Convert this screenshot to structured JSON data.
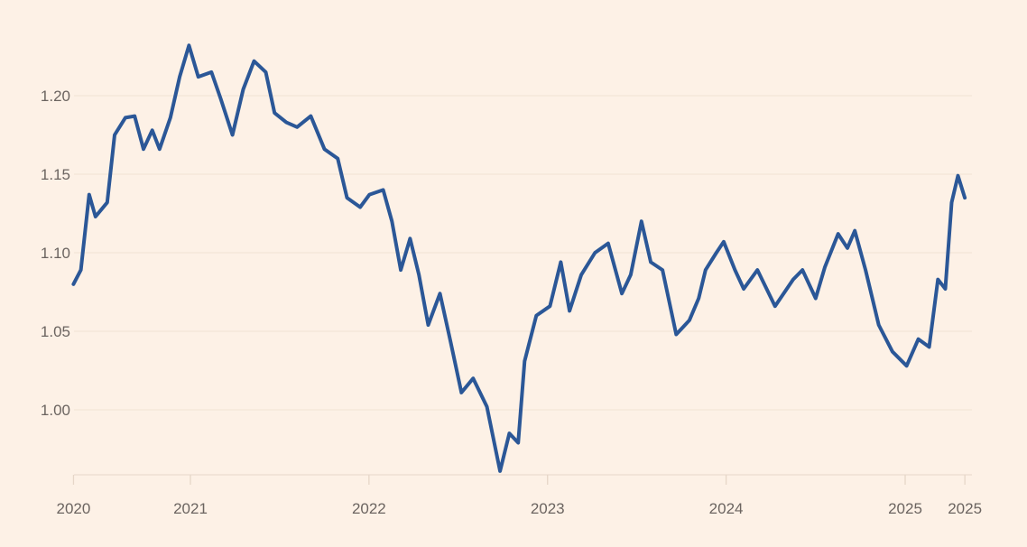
{
  "chart_data": {
    "type": "line",
    "title": "",
    "xlabel": "",
    "ylabel": "",
    "grid": true,
    "ylim": [
      0.958,
      1.24
    ],
    "yticks": [
      {
        "value": 1.0,
        "label": "1.00"
      },
      {
        "value": 1.05,
        "label": "1.05"
      },
      {
        "value": 1.1,
        "label": "1.10"
      },
      {
        "value": 1.15,
        "label": "1.15"
      },
      {
        "value": 1.2,
        "label": "1.20"
      }
    ],
    "xticks": [
      {
        "date": "2020-05-07",
        "label": "2020"
      },
      {
        "date": "2021-01-01",
        "label": "2021"
      },
      {
        "date": "2022-01-01",
        "label": "2022"
      },
      {
        "date": "2023-01-01",
        "label": "2023"
      },
      {
        "date": "2024-01-01",
        "label": "2024"
      },
      {
        "date": "2025-01-01",
        "label": "2025"
      },
      {
        "date": "2025-05-03",
        "label": "2025"
      }
    ],
    "colors": {
      "background": "#fdf1e6",
      "line": "#2b5797"
    },
    "series": [
      {
        "points": [
          [
            "2020-05-07",
            1.08
          ],
          [
            "2020-05-22",
            1.089
          ],
          [
            "2020-06-08",
            1.137
          ],
          [
            "2020-06-21",
            1.123
          ],
          [
            "2020-07-15",
            1.132
          ],
          [
            "2020-07-30",
            1.175
          ],
          [
            "2020-08-21",
            1.186
          ],
          [
            "2020-09-09",
            1.187
          ],
          [
            "2020-09-27",
            1.166
          ],
          [
            "2020-10-15",
            1.178
          ],
          [
            "2020-10-30",
            1.166
          ],
          [
            "2020-11-21",
            1.186
          ],
          [
            "2020-12-10",
            1.212
          ],
          [
            "2020-12-29",
            1.232
          ],
          [
            "2021-01-17",
            1.212
          ],
          [
            "2021-02-13",
            1.215
          ],
          [
            "2021-03-04",
            1.198
          ],
          [
            "2021-03-28",
            1.175
          ],
          [
            "2021-04-19",
            1.204
          ],
          [
            "2021-05-11",
            1.222
          ],
          [
            "2021-06-04",
            1.215
          ],
          [
            "2021-06-22",
            1.189
          ],
          [
            "2021-07-16",
            1.183
          ],
          [
            "2021-08-07",
            1.18
          ],
          [
            "2021-09-04",
            1.187
          ],
          [
            "2021-10-02",
            1.166
          ],
          [
            "2021-10-29",
            1.16
          ],
          [
            "2021-11-17",
            1.135
          ],
          [
            "2021-12-14",
            1.129
          ],
          [
            "2022-01-02",
            1.137
          ],
          [
            "2022-01-30",
            1.14
          ],
          [
            "2022-02-17",
            1.12
          ],
          [
            "2022-03-07",
            1.089
          ],
          [
            "2022-03-26",
            1.109
          ],
          [
            "2022-04-13",
            1.086
          ],
          [
            "2022-05-02",
            1.054
          ],
          [
            "2022-05-26",
            1.074
          ],
          [
            "2022-06-17",
            1.043
          ],
          [
            "2022-07-09",
            1.011
          ],
          [
            "2022-08-02",
            1.02
          ],
          [
            "2022-08-30",
            1.002
          ],
          [
            "2022-09-26",
            0.961
          ],
          [
            "2022-10-15",
            0.985
          ],
          [
            "2022-11-02",
            0.979
          ],
          [
            "2022-11-15",
            1.031
          ],
          [
            "2022-12-09",
            1.06
          ],
          [
            "2023-01-06",
            1.066
          ],
          [
            "2023-01-28",
            1.094
          ],
          [
            "2023-02-15",
            1.063
          ],
          [
            "2023-03-11",
            1.086
          ],
          [
            "2023-04-08",
            1.1
          ],
          [
            "2023-05-05",
            1.106
          ],
          [
            "2023-06-02",
            1.074
          ],
          [
            "2023-06-20",
            1.086
          ],
          [
            "2023-07-12",
            1.12
          ],
          [
            "2023-07-31",
            1.094
          ],
          [
            "2023-08-24",
            1.089
          ],
          [
            "2023-09-21",
            1.048
          ],
          [
            "2023-10-18",
            1.057
          ],
          [
            "2023-11-06",
            1.071
          ],
          [
            "2023-11-20",
            1.089
          ],
          [
            "2023-12-12",
            1.1
          ],
          [
            "2023-12-27",
            1.107
          ],
          [
            "2024-01-19",
            1.089
          ],
          [
            "2024-02-06",
            1.077
          ],
          [
            "2024-03-05",
            1.089
          ],
          [
            "2024-04-10",
            1.066
          ],
          [
            "2024-05-17",
            1.083
          ],
          [
            "2024-06-05",
            1.089
          ],
          [
            "2024-07-02",
            1.071
          ],
          [
            "2024-07-21",
            1.091
          ],
          [
            "2024-08-17",
            1.112
          ],
          [
            "2024-09-05",
            1.103
          ],
          [
            "2024-09-20",
            1.114
          ],
          [
            "2024-10-12",
            1.089
          ],
          [
            "2024-11-08",
            1.054
          ],
          [
            "2024-12-06",
            1.037
          ],
          [
            "2025-01-04",
            1.028
          ],
          [
            "2025-01-28",
            1.045
          ],
          [
            "2025-02-19",
            1.04
          ],
          [
            "2025-03-09",
            1.083
          ],
          [
            "2025-03-24",
            1.077
          ],
          [
            "2025-04-06",
            1.132
          ],
          [
            "2025-04-19",
            1.149
          ],
          [
            "2025-05-03",
            1.135
          ]
        ]
      }
    ]
  }
}
